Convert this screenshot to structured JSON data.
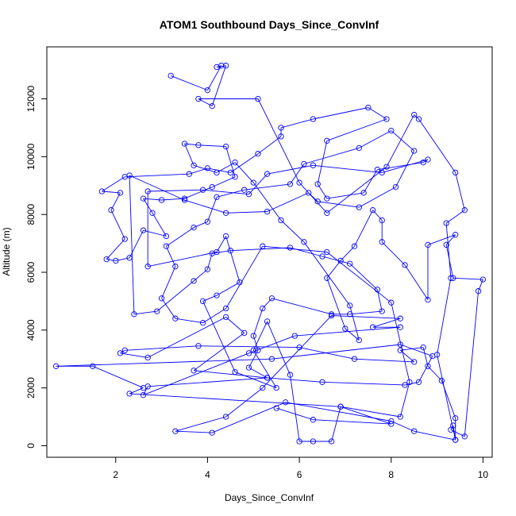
{
  "chart_data": {
    "type": "line",
    "title": "ATOM1 Southbound Days_Since_ConvInf",
    "xlabel": "Days_Since_ConvInf",
    "ylabel": "Altitude (m)",
    "xlim": [
      0.5,
      10.2
    ],
    "ylim": [
      -400,
      13800
    ],
    "x_ticks": [
      2,
      4,
      6,
      8,
      10
    ],
    "y_ticks": [
      0,
      2000,
      4000,
      6000,
      8000,
      10000,
      12000
    ],
    "grid": false,
    "series_color": "#0000ff",
    "marker": "open-circle",
    "points": [
      [
        3.2,
        12800
      ],
      [
        4.0,
        12300
      ],
      [
        4.3,
        13150
      ],
      [
        4.2,
        13100
      ],
      [
        4.4,
        13150
      ],
      [
        4.1,
        11750
      ],
      [
        3.8,
        12000
      ],
      [
        5.1,
        12000
      ],
      [
        6.0,
        9100
      ],
      [
        6.6,
        8050
      ],
      [
        7.9,
        9650
      ],
      [
        8.5,
        11450
      ],
      [
        8.6,
        11300
      ],
      [
        9.4,
        9450
      ],
      [
        9.6,
        8150
      ],
      [
        9.2,
        7700
      ],
      [
        9.3,
        5800
      ],
      [
        9.0,
        3150
      ],
      [
        9.4,
        200
      ],
      [
        9.35,
        700
      ],
      [
        9.3,
        550
      ],
      [
        9.6,
        320
      ],
      [
        9.9,
        5350
      ],
      [
        10.0,
        5750
      ],
      [
        9.35,
        5800
      ],
      [
        9.2,
        6950
      ],
      [
        9.4,
        7300
      ],
      [
        8.8,
        6950
      ],
      [
        8.8,
        5050
      ],
      [
        8.3,
        6250
      ],
      [
        7.8,
        7050
      ],
      [
        7.8,
        7800
      ],
      [
        7.6,
        8150
      ],
      [
        7.2,
        6900
      ],
      [
        6.9,
        6400
      ],
      [
        6.6,
        5800
      ],
      [
        7.0,
        4050
      ],
      [
        7.3,
        3650
      ],
      [
        7.1,
        4850
      ],
      [
        6.1,
        7050
      ],
      [
        5.6,
        7800
      ],
      [
        5.0,
        9100
      ],
      [
        4.6,
        9800
      ],
      [
        4.2,
        9450
      ],
      [
        3.7,
        9700
      ],
      [
        3.5,
        10450
      ],
      [
        3.8,
        10400
      ],
      [
        4.4,
        10350
      ],
      [
        4.6,
        9300
      ],
      [
        4.1,
        8950
      ],
      [
        3.5,
        8550
      ],
      [
        3.0,
        8500
      ],
      [
        2.6,
        8550
      ],
      [
        2.8,
        8050
      ],
      [
        3.1,
        7250
      ],
      [
        2.6,
        7450
      ],
      [
        2.3,
        6500
      ],
      [
        2.0,
        6400
      ],
      [
        1.8,
        6450
      ],
      [
        2.2,
        7150
      ],
      [
        1.9,
        8150
      ],
      [
        2.1,
        8750
      ],
      [
        1.7,
        8800
      ],
      [
        2.2,
        9300
      ],
      [
        3.6,
        9400
      ],
      [
        4.0,
        9600
      ],
      [
        4.5,
        9450
      ],
      [
        5.1,
        10100
      ],
      [
        5.6,
        10700
      ],
      [
        5.6,
        11000
      ],
      [
        6.3,
        11300
      ],
      [
        7.5,
        11700
      ],
      [
        7.9,
        11300
      ],
      [
        6.6,
        10550
      ],
      [
        6.4,
        9050
      ],
      [
        6.6,
        8550
      ],
      [
        7.4,
        8750
      ],
      [
        7.7,
        9550
      ],
      [
        8.7,
        9800
      ],
      [
        8.8,
        9900
      ],
      [
        7.8,
        9450
      ],
      [
        6.3,
        9700
      ],
      [
        5.3,
        9400
      ],
      [
        4.9,
        8700
      ],
      [
        3.9,
        8850
      ],
      [
        2.7,
        8800
      ],
      [
        2.7,
        6200
      ],
      [
        4.2,
        6700
      ],
      [
        4.4,
        7250
      ],
      [
        4.7,
        5650
      ],
      [
        4.2,
        5200
      ],
      [
        3.9,
        5000
      ],
      [
        4.6,
        2550
      ],
      [
        5.5,
        2000
      ],
      [
        5.0,
        3300
      ],
      [
        5.3,
        4300
      ],
      [
        5.8,
        2450
      ],
      [
        6.0,
        150
      ],
      [
        6.3,
        150
      ],
      [
        6.7,
        150
      ],
      [
        6.9,
        1350
      ],
      [
        8.2,
        1000
      ],
      [
        8.4,
        2200
      ],
      [
        8.0,
        4950
      ],
      [
        6.6,
        6700
      ],
      [
        5.2,
        6900
      ],
      [
        4.4,
        4750
      ],
      [
        3.9,
        4250
      ],
      [
        3.3,
        4400
      ],
      [
        3.0,
        5100
      ],
      [
        3.3,
        6200
      ],
      [
        3.1,
        6900
      ],
      [
        3.7,
        7550
      ],
      [
        4.0,
        7750
      ],
      [
        4.2,
        8600
      ],
      [
        4.8,
        8850
      ],
      [
        5.8,
        9050
      ],
      [
        6.1,
        9750
      ],
      [
        7.3,
        10300
      ],
      [
        8.0,
        10900
      ],
      [
        8.5,
        10200
      ],
      [
        8.1,
        8950
      ],
      [
        7.3,
        8250
      ],
      [
        6.4,
        8450
      ],
      [
        6.2,
        8750
      ],
      [
        5.3,
        8100
      ],
      [
        4.4,
        8050
      ],
      [
        3.5,
        8500
      ],
      [
        2.3,
        9350
      ],
      [
        2.4,
        4550
      ],
      [
        2.9,
        4650
      ],
      [
        3.7,
        5700
      ],
      [
        4.0,
        6100
      ],
      [
        4.1,
        6650
      ],
      [
        4.5,
        6750
      ],
      [
        5.8,
        6850
      ],
      [
        6.5,
        6550
      ],
      [
        7.1,
        6300
      ],
      [
        7.7,
        5400
      ],
      [
        7.8,
        4650
      ],
      [
        7.1,
        4550
      ],
      [
        6.7,
        4550
      ],
      [
        5.4,
        5100
      ],
      [
        5.2,
        4750
      ],
      [
        5.0,
        3800
      ],
      [
        5.1,
        3300
      ],
      [
        4.9,
        2700
      ],
      [
        5.3,
        2350
      ],
      [
        3.7,
        2600
      ],
      [
        4.8,
        3900
      ],
      [
        4.4,
        4450
      ],
      [
        2.7,
        3050
      ],
      [
        2.1,
        3200
      ],
      [
        2.2,
        3300
      ],
      [
        3.8,
        3450
      ],
      [
        6.0,
        3400
      ],
      [
        7.2,
        3000
      ],
      [
        8.5,
        2900
      ],
      [
        8.2,
        3300
      ],
      [
        8.7,
        3400
      ],
      [
        8.8,
        2750
      ],
      [
        9.1,
        2250
      ],
      [
        9.4,
        950
      ],
      [
        9.4,
        200
      ],
      [
        8.5,
        500
      ],
      [
        8.0,
        850
      ],
      [
        5.7,
        1500
      ],
      [
        4.1,
        450
      ],
      [
        3.3,
        500
      ],
      [
        4.4,
        1000
      ],
      [
        5.2,
        2000
      ],
      [
        6.7,
        4500
      ],
      [
        8.2,
        4400
      ],
      [
        7.6,
        4100
      ],
      [
        8.2,
        4100
      ],
      [
        5.9,
        3800
      ],
      [
        4.9,
        3200
      ],
      [
        2.6,
        1750
      ],
      [
        2.7,
        2050
      ],
      [
        5.3,
        2350
      ],
      [
        6.5,
        2200
      ],
      [
        8.3,
        2100
      ],
      [
        8.6,
        2200
      ],
      [
        8.9,
        3100
      ],
      [
        8.2,
        3500
      ],
      [
        5.4,
        3000
      ],
      [
        0.7,
        2750
      ],
      [
        1.5,
        2750
      ],
      [
        2.6,
        2000
      ],
      [
        2.3,
        1800
      ],
      [
        6.9,
        1350
      ],
      [
        8.0,
        750
      ],
      [
        6.3,
        900
      ],
      [
        5.5,
        1300
      ]
    ]
  }
}
